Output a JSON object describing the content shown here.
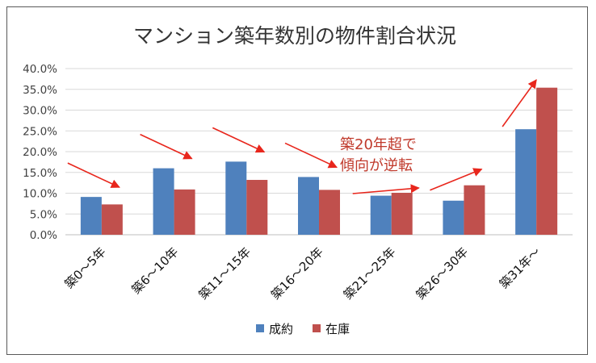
{
  "chart_data": {
    "type": "bar",
    "title": "マンション築年数別の物件割合状況",
    "xlabel": "",
    "ylabel": "",
    "categories": [
      "築0～5年",
      "築6～10年",
      "築11～15年",
      "築16～20年",
      "築21～25年",
      "築26～30年",
      "築31年～"
    ],
    "series": [
      {
        "name": "成約",
        "color": "#4f81bd",
        "values": [
          9.1,
          16.0,
          17.6,
          13.9,
          9.4,
          8.2,
          25.4
        ]
      },
      {
        "name": "在庫",
        "color": "#c0504d",
        "values": [
          7.3,
          10.9,
          13.2,
          10.8,
          10.1,
          11.9,
          35.4
        ]
      }
    ],
    "ylim": [
      0,
      40
    ],
    "yticks": [
      "0.0%",
      "5.0%",
      "10.0%",
      "15.0%",
      "20.0%",
      "25.0%",
      "30.0%",
      "35.0%",
      "40.0%"
    ],
    "grid": true,
    "legend_position": "bottom",
    "annotation": {
      "lines": [
        "築20年超で",
        "傾向が逆転"
      ],
      "color": "#c0392b"
    },
    "arrow_color": "#e8261c",
    "trend_arrows": [
      "down",
      "down",
      "down",
      "down",
      "up",
      "up",
      "up"
    ]
  }
}
